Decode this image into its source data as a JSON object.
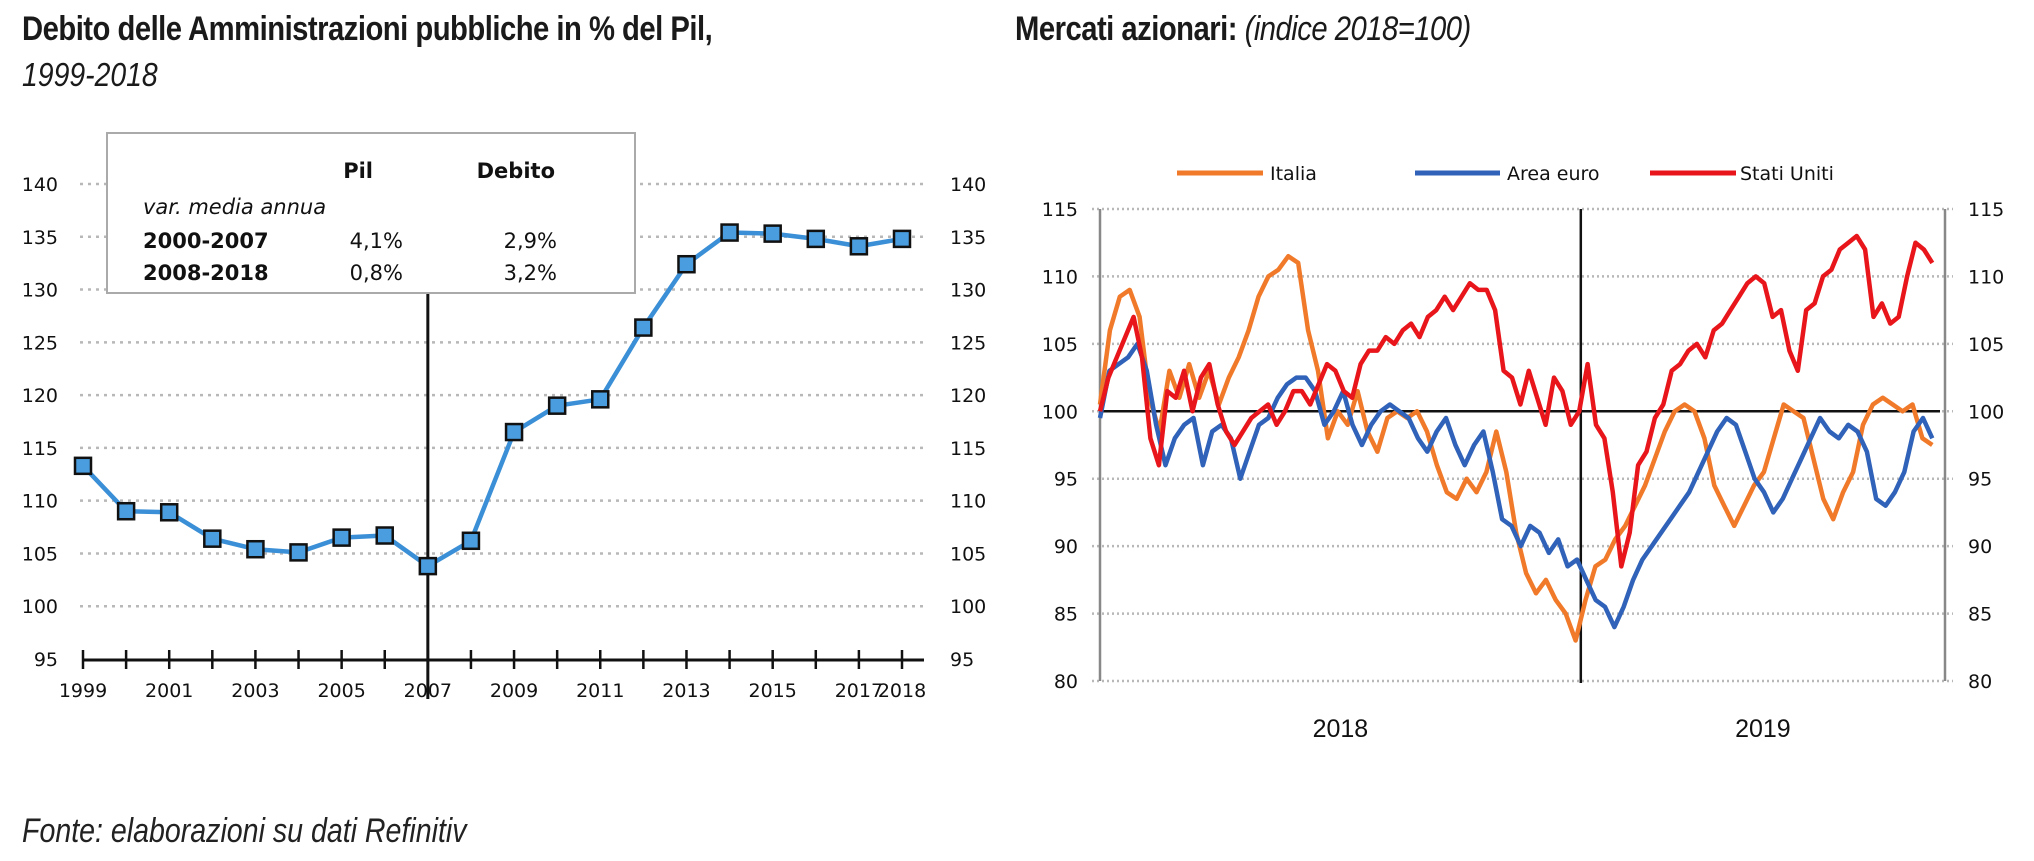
{
  "left_title": {
    "bold": "Debito delle Amministrazioni pubbliche in % del Pil,",
    "italic": "1999-2018"
  },
  "right_title": {
    "bold": "Mercati azionari:",
    "italic": "(indice 2018=100)"
  },
  "footer": "Fonte: elaborazioni su dati Refinitiv",
  "colors": {
    "debt_line": "#3a8fd6",
    "debt_marker": "#4a9ee0",
    "italia": "#f07a2a",
    "area_euro": "#2f62b8",
    "stati_uniti": "#e8161b",
    "grid": "#b8b8b8",
    "axis": "#111111"
  },
  "chart_data": [
    {
      "type": "line",
      "title": "Debito delle Amministrazioni pubbliche in % del Pil, 1999-2018",
      "xlabel": "",
      "ylabel": "",
      "categories": [
        "1999",
        "2000",
        "2001",
        "2002",
        "2003",
        "2004",
        "2005",
        "2006",
        "2007",
        "2008",
        "2009",
        "2010",
        "2011",
        "2012",
        "2013",
        "2014",
        "2015",
        "2016",
        "2017",
        "2018"
      ],
      "x_tick_labels": [
        "1999",
        "2001",
        "2003",
        "2005",
        "2007",
        "2009",
        "2011",
        "2013",
        "2015",
        "2017",
        "2018"
      ],
      "y_ticks": [
        95,
        100,
        105,
        110,
        115,
        120,
        125,
        130,
        135,
        140
      ],
      "ylim": [
        95,
        140
      ],
      "grid": true,
      "vertical_marker": "2007",
      "markers": "square",
      "series": [
        {
          "name": "Debito / Pil",
          "values": [
            113.3,
            109.0,
            108.9,
            106.4,
            105.4,
            105.1,
            106.5,
            106.7,
            103.8,
            106.2,
            116.5,
            119.0,
            119.6,
            126.4,
            132.4,
            135.4,
            135.3,
            134.8,
            134.1,
            134.8
          ]
        }
      ],
      "inset_table": {
        "headers": [
          "",
          "Pil",
          "Debito"
        ],
        "subtitle": "var. media annua",
        "rows": [
          {
            "period": "2000-2007",
            "pil": "4,1%",
            "debito": "2,9%"
          },
          {
            "period": "2008-2018",
            "pil": "0,8%",
            "debito": "3,2%"
          }
        ]
      }
    },
    {
      "type": "line",
      "title": "Mercati azionari: (indice 2018=100)",
      "xlabel": "",
      "ylabel": "",
      "x_tick_labels": [
        "2018",
        "2019"
      ],
      "year_break_fraction": 0.569,
      "y_ticks": [
        80,
        85,
        90,
        95,
        100,
        105,
        110,
        115
      ],
      "ylim": [
        80,
        115
      ],
      "grid": true,
      "reference_line": 100,
      "legend": {
        "position": "top",
        "entries": [
          "Italia",
          "Area euro",
          "Stati Uniti"
        ]
      },
      "series": [
        {
          "name": "Italia",
          "values": [
            100.5,
            106,
            108.5,
            109,
            107,
            101,
            98.5,
            103,
            101,
            103.5,
            101,
            103,
            100.5,
            102.5,
            104,
            106,
            108.5,
            110,
            110.5,
            111.5,
            111,
            106,
            103,
            98,
            100,
            99,
            101.5,
            98.5,
            97,
            99.5,
            100,
            99.5,
            100,
            98.5,
            96,
            94,
            93.5,
            95,
            94,
            95.5,
            98.5,
            95.5,
            91,
            88,
            86.5,
            87.5,
            86,
            85,
            83,
            86,
            88.5,
            89,
            90.5,
            91.5,
            93,
            94.5,
            96.5,
            98.5,
            100,
            100.5,
            100,
            98,
            94.5,
            93,
            91.5,
            93,
            94.5,
            95.5,
            98,
            100.5,
            100,
            99.5,
            96.5,
            93.5,
            92,
            94,
            95.5,
            99,
            100.5,
            101,
            100.5,
            100,
            100.5,
            98,
            97.5
          ]
        },
        {
          "name": "Area euro",
          "values": [
            99.5,
            103,
            103.5,
            104,
            105,
            103,
            99,
            96,
            98,
            99,
            99.5,
            96,
            98.5,
            99,
            98,
            95,
            97,
            99,
            99.5,
            101,
            102,
            102.5,
            102.5,
            101.5,
            99,
            100,
            101.5,
            99,
            97.5,
            99,
            100,
            100.5,
            100,
            99.5,
            98,
            97,
            98.5,
            99.5,
            97.5,
            96,
            97.5,
            98.5,
            95.5,
            92,
            91.5,
            90,
            91.5,
            91,
            89.5,
            90.5,
            88.5,
            89,
            87.5,
            86,
            85.5,
            84,
            85.5,
            87.5,
            89,
            90,
            91,
            92,
            93,
            94,
            95.5,
            97,
            98.5,
            99.5,
            99,
            97,
            95,
            94,
            92.5,
            93.5,
            95,
            96.5,
            98,
            99.5,
            98.5,
            98,
            99,
            98.5,
            97,
            93.5,
            93,
            94,
            95.5,
            98.5,
            99.5,
            98
          ]
        },
        {
          "name": "Stati Uniti",
          "values": [
            100,
            102.5,
            104,
            105.5,
            107,
            104,
            98,
            96,
            101.5,
            101,
            103,
            100,
            102.5,
            103.5,
            100.5,
            98.5,
            97.5,
            98.5,
            99.5,
            100,
            100.5,
            99,
            100,
            101.5,
            101.5,
            100.5,
            102,
            103.5,
            103,
            101.5,
            101,
            103.5,
            104.5,
            104.5,
            105.5,
            105,
            106,
            106.5,
            105.5,
            107,
            107.5,
            108.5,
            107.5,
            108.5,
            109.5,
            109,
            109,
            107.5,
            103,
            102.5,
            100.5,
            103,
            101,
            99,
            102.5,
            101.5,
            99,
            100,
            103.5,
            99,
            98,
            94,
            88.5,
            91,
            96,
            97,
            99.5,
            100.5,
            103,
            103.5,
            104.5,
            105,
            104,
            106,
            106.5,
            107.5,
            108.5,
            109.5,
            110,
            109.5,
            107,
            107.5,
            104.5,
            103,
            107.5,
            108,
            110,
            110.5,
            112,
            112.5,
            113,
            112,
            107,
            108,
            106.5,
            107,
            110,
            112.5,
            112,
            111
          ]
        }
      ]
    }
  ]
}
